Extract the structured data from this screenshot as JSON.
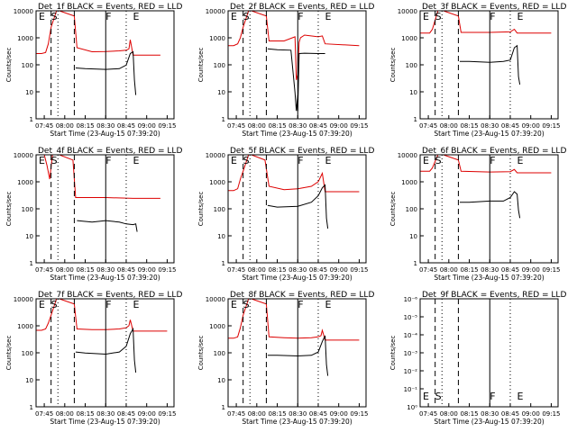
{
  "colors": {
    "events": "#000000",
    "lld": "#dd0000",
    "axes": "#000000"
  },
  "xticks": [
    "07:45",
    "08:00",
    "08:15",
    "08:30",
    "08:45",
    "09:00",
    "09:15"
  ],
  "ylabel": "Counts/sec",
  "xlabel": "Start Time (23-Aug-15 07:39:20)",
  "chart_data": [
    {
      "type": "line",
      "title": "Det_1f BLACK = Events, RED = LLD",
      "yscale": "log",
      "yticks": [
        "1",
        "10",
        "100",
        "1000",
        "10000"
      ],
      "markers": [
        "E",
        "S",
        "F",
        "E"
      ],
      "series": [
        {
          "name": "LLD",
          "color": "#dd0000",
          "x": [
            "07:39",
            "07:43",
            "07:46",
            "07:48",
            "07:50",
            "07:54",
            "07:56",
            "08:07",
            "08:09",
            "08:20",
            "08:30",
            "08:40",
            "08:45",
            "08:47",
            "08:48",
            "08:50",
            "08:55",
            "09:00",
            "09:10"
          ],
          "y": [
            300,
            300,
            330,
            700,
            3000,
            50000,
            50000,
            8000,
            500,
            350,
            360,
            380,
            400,
            450,
            1000,
            260,
            260,
            260,
            260
          ]
        },
        {
          "name": "Events",
          "color": "#000000",
          "x": [
            "08:08",
            "08:15",
            "08:30",
            "08:40",
            "08:45",
            "08:48",
            "08:50",
            "08:51",
            "08:51",
            "08:52"
          ],
          "y": [
            85,
            80,
            75,
            80,
            110,
            300,
            350,
            30,
            30,
            8
          ]
        }
      ]
    },
    {
      "type": "line",
      "title": "Det_2f BLACK = Events, RED = LLD",
      "yscale": "log",
      "yticks": [
        "1",
        "10",
        "100",
        "1000",
        "10000"
      ],
      "markers": [
        "E",
        "S",
        "F",
        "E"
      ],
      "series": [
        {
          "name": "LLD",
          "color": "#dd0000",
          "x": [
            "07:39",
            "07:43",
            "07:46",
            "07:48",
            "07:50",
            "07:54",
            "07:56",
            "08:07",
            "08:09",
            "08:20",
            "08:28",
            "08:29",
            "08:30",
            "08:31",
            "08:32",
            "08:35",
            "08:45",
            "08:48",
            "08:50",
            "09:15"
          ],
          "y": [
            600,
            600,
            700,
            1200,
            3000,
            50000,
            50000,
            8000,
            900,
            900,
            1300,
            30,
            50,
            800,
            1200,
            1500,
            1300,
            1400,
            700,
            600
          ]
        },
        {
          "name": "Events",
          "color": "#000000",
          "x": [
            "08:08",
            "08:15",
            "08:25",
            "08:28",
            "08:29",
            "08:30",
            "08:30",
            "08:31",
            "08:35",
            "08:45",
            "08:50"
          ],
          "y": [
            450,
            420,
            400,
            10,
            2,
            8,
            2,
            300,
            310,
            300,
            300
          ]
        }
      ]
    },
    {
      "type": "line",
      "title": "Det_3f BLACK = Events, RED = LLD",
      "yscale": "log",
      "yticks": [
        "1",
        "10",
        "100",
        "1000",
        "10000"
      ],
      "markers": [
        "E",
        "S",
        "F",
        "E"
      ],
      "series": [
        {
          "name": "LLD",
          "color": "#dd0000",
          "x": [
            "07:39",
            "07:46",
            "07:48",
            "07:52",
            "07:56",
            "08:07",
            "08:09",
            "08:30",
            "08:45",
            "08:48",
            "08:50",
            "09:15"
          ],
          "y": [
            1800,
            1800,
            2500,
            50000,
            50000,
            8000,
            1900,
            1900,
            2000,
            2500,
            1800,
            1800
          ]
        },
        {
          "name": "Events",
          "color": "#000000",
          "x": [
            "08:08",
            "08:15",
            "08:30",
            "08:40",
            "08:45",
            "08:48",
            "08:50",
            "08:51",
            "08:52"
          ],
          "y": [
            150,
            150,
            140,
            150,
            170,
            500,
            600,
            40,
            20
          ]
        }
      ]
    },
    {
      "type": "line",
      "title": "Det_4f BLACK = Events, RED = LLD",
      "yscale": "log",
      "yticks": [
        "1",
        "10",
        "100",
        "1000",
        "10000"
      ],
      "markers": [
        "E",
        "S",
        "F",
        "E"
      ],
      "series": [
        {
          "name": "LLD",
          "color": "#dd0000",
          "x": [
            "07:39",
            "07:45",
            "07:47",
            "07:49",
            "07:51",
            "07:56",
            "08:06",
            "08:08",
            "08:30",
            "08:50",
            "09:10"
          ],
          "y": [
            50000,
            50000,
            5000,
            1500,
            50000,
            50000,
            8000,
            300,
            300,
            280,
            280
          ]
        },
        {
          "name": "Events",
          "color": "#000000",
          "x": [
            "08:09",
            "08:20",
            "08:30",
            "08:40",
            "08:45",
            "08:50",
            "08:52",
            "08:53"
          ],
          "y": [
            40,
            35,
            40,
            35,
            30,
            28,
            30,
            15
          ]
        }
      ]
    },
    {
      "type": "line",
      "title": "Det_5f BLACK = Events, RED = LLD",
      "yscale": "log",
      "yticks": [
        "1",
        "10",
        "100",
        "1000",
        "10000"
      ],
      "markers": [
        "E",
        "S",
        "F",
        "E"
      ],
      "series": [
        {
          "name": "LLD",
          "color": "#dd0000",
          "x": [
            "07:39",
            "07:43",
            "07:46",
            "07:48",
            "07:50",
            "07:54",
            "07:56",
            "08:06",
            "08:09",
            "08:20",
            "08:30",
            "08:40",
            "08:45",
            "08:48",
            "08:50",
            "09:15"
          ],
          "y": [
            550,
            550,
            650,
            1500,
            3000,
            50000,
            50000,
            8000,
            800,
            600,
            650,
            800,
            1200,
            2500,
            500,
            500
          ]
        },
        {
          "name": "Events",
          "color": "#000000",
          "x": [
            "08:08",
            "08:15",
            "08:30",
            "08:40",
            "08:45",
            "08:48",
            "08:50",
            "08:51",
            "08:52"
          ],
          "y": [
            150,
            130,
            140,
            200,
            350,
            700,
            900,
            50,
            20
          ]
        }
      ]
    },
    {
      "type": "line",
      "title": "Det_6f BLACK = Events, RED = LLD",
      "yscale": "log",
      "yticks": [
        "1",
        "10",
        "100",
        "1000",
        "10000"
      ],
      "markers": [
        "E",
        "S",
        "F",
        "E"
      ],
      "series": [
        {
          "name": "LLD",
          "color": "#dd0000",
          "x": [
            "07:39",
            "07:46",
            "07:48",
            "07:52",
            "07:56",
            "08:07",
            "08:09",
            "08:30",
            "08:45",
            "08:48",
            "08:50",
            "09:15"
          ],
          "y": [
            3000,
            3000,
            4000,
            50000,
            50000,
            8000,
            3000,
            2800,
            2900,
            3500,
            2600,
            2600
          ]
        },
        {
          "name": "Events",
          "color": "#000000",
          "x": [
            "08:08",
            "08:15",
            "08:30",
            "08:40",
            "08:45",
            "08:48",
            "08:50",
            "08:51",
            "08:52"
          ],
          "y": [
            200,
            200,
            220,
            220,
            300,
            500,
            400,
            100,
            50
          ]
        }
      ]
    },
    {
      "type": "line",
      "title": "Det_7f BLACK = Events, RED = LLD",
      "yscale": "log",
      "yticks": [
        "1",
        "10",
        "100",
        "1000",
        "10000"
      ],
      "markers": [
        "E",
        "S",
        "F",
        "E"
      ],
      "series": [
        {
          "name": "LLD",
          "color": "#dd0000",
          "x": [
            "07:39",
            "07:43",
            "07:46",
            "07:48",
            "07:50",
            "07:54",
            "07:56",
            "08:07",
            "08:09",
            "08:20",
            "08:30",
            "08:40",
            "08:45",
            "08:47",
            "08:48",
            "08:50",
            "09:15"
          ],
          "y": [
            800,
            800,
            900,
            1500,
            3000,
            50000,
            50000,
            8000,
            900,
            850,
            850,
            900,
            1000,
            1200,
            2000,
            750,
            750
          ]
        },
        {
          "name": "Events",
          "color": "#000000",
          "x": [
            "08:08",
            "08:15",
            "08:30",
            "08:40",
            "08:45",
            "08:48",
            "08:50",
            "08:51",
            "08:52"
          ],
          "y": [
            120,
            110,
            100,
            120,
            200,
            600,
            900,
            60,
            20
          ]
        }
      ]
    },
    {
      "type": "line",
      "title": "Det_8f BLACK = Events, RED = LLD",
      "yscale": "log",
      "yticks": [
        "1",
        "10",
        "100",
        "1000",
        "10000"
      ],
      "markers": [
        "E",
        "S",
        "F",
        "E"
      ],
      "series": [
        {
          "name": "LLD",
          "color": "#dd0000",
          "x": [
            "07:39",
            "07:43",
            "07:46",
            "07:48",
            "07:50",
            "07:54",
            "07:56",
            "08:07",
            "08:09",
            "08:20",
            "08:30",
            "08:40",
            "08:45",
            "08:47",
            "08:48",
            "08:50",
            "09:15"
          ],
          "y": [
            400,
            400,
            450,
            1000,
            3000,
            50000,
            50000,
            8000,
            450,
            420,
            400,
            420,
            450,
            500,
            800,
            340,
            340
          ]
        },
        {
          "name": "Events",
          "color": "#000000",
          "x": [
            "08:08",
            "08:15",
            "08:30",
            "08:40",
            "08:45",
            "08:48",
            "08:50",
            "08:51",
            "08:52"
          ],
          "y": [
            90,
            90,
            85,
            90,
            120,
            300,
            500,
            40,
            15
          ]
        }
      ]
    },
    {
      "type": "line",
      "title": "Det_9f BLACK = Events, RED = LLD",
      "yscale": "log",
      "yticks": [
        "10⁰",
        "10⁻¹",
        "10⁻²",
        "10⁻³",
        "10⁻⁴",
        "10⁻⁵",
        "10⁻⁶"
      ],
      "markers": [
        "E",
        "S",
        "F",
        "E"
      ],
      "series": []
    }
  ]
}
